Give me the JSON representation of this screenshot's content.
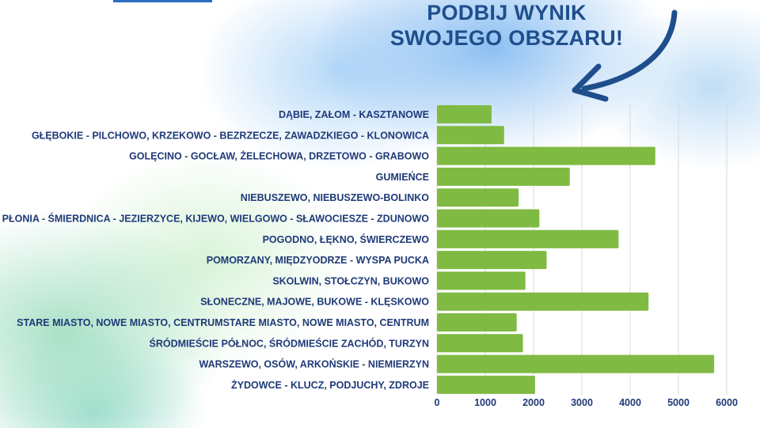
{
  "header": {
    "line1": "PODBIJ WYNIK",
    "line2": "SWOJEGO OBSZARU!"
  },
  "colors": {
    "title": "#1f4e8c",
    "bar": "#7fba42",
    "labels": "#1f3a78"
  },
  "icons": {
    "arrow": "curved-arrow-pointing-left-down"
  },
  "chart_data": {
    "type": "bar",
    "orientation": "horizontal",
    "categories": [
      "DĄBIE, ZAŁOM - KASZTANOWE",
      "GŁĘBOKIE - PILCHOWO, KRZEKOWO - BEZRZECZE, ZAWADZKIEGO - KLONOWICA",
      "GOLĘCINO - GOCŁAW, ŻELECHOWA, DRZETOWO - GRABOWO",
      "GUMIEŃCE",
      "NIEBUSZEWO, NIEBUSZEWO-BOLINKO",
      "PŁONIA - ŚMIERDNICA - JEZIERZYCE, KIJEWO, WIELGOWO - SŁAWOCIESZE - ZDUNOWO",
      "POGODNO, ŁĘKNO, ŚWIERCZEWO",
      "POMORZANY, MIĘDZYODRZE - WYSPA PUCKA",
      "SKOLWIN, STOŁCZYN, BUKOWO",
      "SŁONECZNE, MAJOWE, BUKOWE - KLĘSKOWO",
      "STARE MIASTO, NOWE MIASTO, CENTRUMSTARE MIASTO, NOWE MIASTO, CENTRUM",
      "ŚRÓDMIEŚCIE PÓŁNOC, ŚRÓDMIEŚCIE ZACHÓD, TURZYN",
      "WARSZEWO, OSÓW, ARKOŃSKIE - NIEMIERZYN",
      "ŻYDOWCE - KLUCZ, PODJUCHY, ZDROJE"
    ],
    "values": [
      1130,
      1390,
      4520,
      2750,
      1690,
      2120,
      3760,
      2270,
      1830,
      4380,
      1650,
      1780,
      5740,
      2030
    ],
    "xlim": [
      0,
      6000
    ],
    "xticks": [
      "0",
      "1000",
      "2000",
      "3000",
      "4000",
      "5000",
      "6000"
    ],
    "grid": "vertical",
    "legend": "none"
  }
}
